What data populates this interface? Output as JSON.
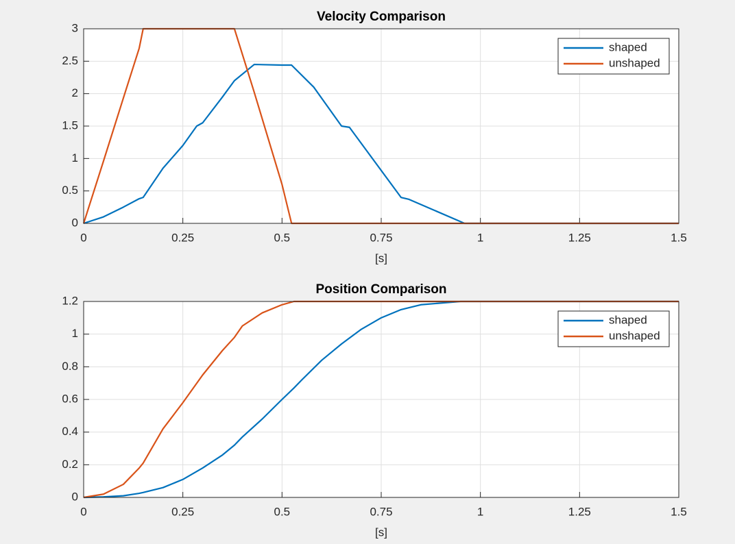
{
  "chart_data": [
    {
      "type": "line",
      "title": "Velocity Comparison",
      "xlabel": "[s]",
      "x": [
        0,
        0.05,
        0.1,
        0.14,
        0.15,
        0.2,
        0.25,
        0.285,
        0.3,
        0.35,
        0.38,
        0.43,
        0.5,
        0.524,
        0.58,
        0.65,
        0.67,
        0.8,
        0.82,
        0.96,
        1.5
      ],
      "series": [
        {
          "name": "shaped",
          "color": "#0072bd",
          "values": [
            0,
            0.1,
            0.25,
            0.38,
            0.4,
            0.85,
            1.2,
            1.5,
            1.55,
            1.95,
            2.2,
            2.45,
            2.44,
            2.44,
            2.1,
            1.5,
            1.48,
            0.4,
            0.37,
            0,
            0
          ]
        },
        {
          "name": "unshaped",
          "color": "#d95319",
          "values": [
            0,
            0.96,
            1.93,
            2.7,
            3,
            3,
            3,
            3,
            3,
            3,
            3,
            2.02,
            0.6,
            0,
            0,
            0,
            0,
            0,
            0,
            0,
            0
          ]
        }
      ],
      "xlim": [
        0,
        1.5
      ],
      "xticks": [
        0,
        0.25,
        0.5,
        0.75,
        1,
        1.25,
        1.5
      ],
      "ylim": [
        0,
        3
      ],
      "yticks": [
        0,
        0.5,
        1,
        1.5,
        2,
        2.5,
        3
      ],
      "grid": true,
      "legend": "top-right"
    },
    {
      "type": "line",
      "title": "Position Comparison",
      "xlabel": "[s]",
      "x": [
        0,
        0.05,
        0.1,
        0.14,
        0.15,
        0.2,
        0.25,
        0.3,
        0.35,
        0.38,
        0.4,
        0.45,
        0.5,
        0.53,
        0.55,
        0.6,
        0.65,
        0.7,
        0.75,
        0.8,
        0.85,
        0.9,
        0.95,
        1.5
      ],
      "series": [
        {
          "name": "shaped",
          "color": "#0072bd",
          "values": [
            0,
            0.003,
            0.01,
            0.025,
            0.03,
            0.06,
            0.11,
            0.18,
            0.26,
            0.32,
            0.37,
            0.48,
            0.6,
            0.67,
            0.72,
            0.84,
            0.94,
            1.03,
            1.1,
            1.15,
            1.18,
            1.19,
            1.2,
            1.2
          ]
        },
        {
          "name": "unshaped",
          "color": "#d95319",
          "values": [
            0,
            0.02,
            0.08,
            0.18,
            0.21,
            0.42,
            0.58,
            0.75,
            0.9,
            0.98,
            1.05,
            1.13,
            1.18,
            1.2,
            1.2,
            1.2,
            1.2,
            1.2,
            1.2,
            1.2,
            1.2,
            1.2,
            1.2,
            1.2
          ]
        }
      ],
      "xlim": [
        0,
        1.5
      ],
      "xticks": [
        0,
        0.25,
        0.5,
        0.75,
        1,
        1.25,
        1.5
      ],
      "ylim": [
        0,
        1.2
      ],
      "yticks": [
        0,
        0.2,
        0.4,
        0.6,
        0.8,
        1,
        1.2
      ],
      "grid": true,
      "legend": "top-right"
    }
  ]
}
